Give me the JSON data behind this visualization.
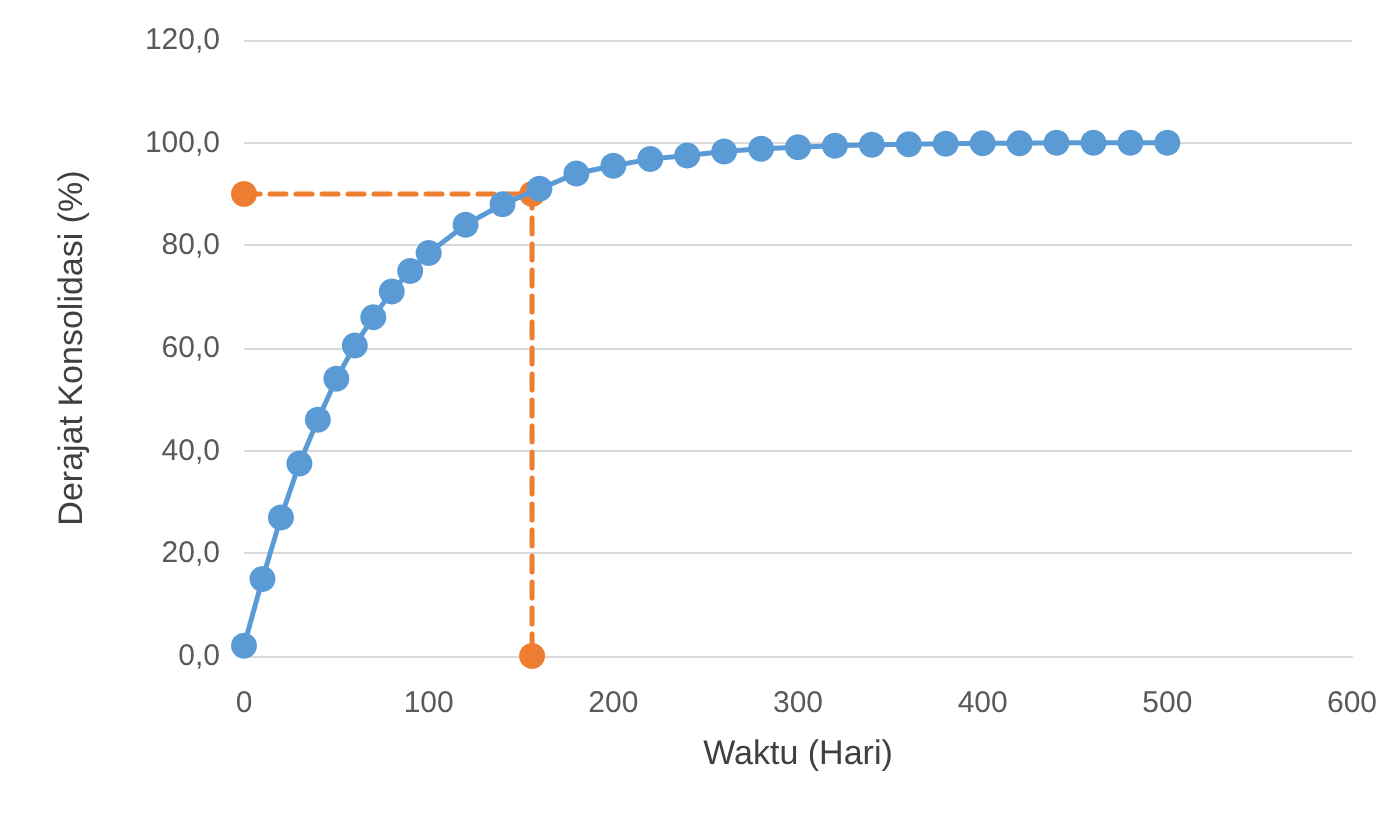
{
  "chart_data": {
    "type": "line",
    "xlabel": "Waktu (Hari)",
    "ylabel": "Derajat Konsolidasi (%)",
    "xlim": [
      0,
      600
    ],
    "xticks": [
      0,
      100,
      200,
      300,
      400,
      500,
      600
    ],
    "ylim": [
      0,
      120
    ],
    "yticks": [
      {
        "value": 0,
        "label": "0,0"
      },
      {
        "value": 20,
        "label": "20,0"
      },
      {
        "value": 40,
        "label": "40,0"
      },
      {
        "value": 60,
        "label": "60,0"
      },
      {
        "value": 80,
        "label": "80,0"
      },
      {
        "value": 100,
        "label": "100,0"
      },
      {
        "value": 120,
        "label": "120,0"
      }
    ],
    "grid": "y",
    "marker": "circle",
    "series": [
      {
        "color": "#5b9bd5",
        "line_style": "solid",
        "x": [
          0,
          10,
          20,
          30,
          40,
          50,
          60,
          70,
          80,
          90,
          100,
          120,
          140,
          160,
          180,
          200,
          220,
          240,
          260,
          280,
          300,
          320,
          340,
          360,
          380,
          400,
          420,
          440,
          460,
          480,
          500
        ],
        "values": [
          2,
          15,
          27,
          37.5,
          46,
          54,
          60.5,
          66,
          71,
          75,
          78.5,
          84,
          88,
          91,
          94,
          95.5,
          96.8,
          97.5,
          98.3,
          98.8,
          99.1,
          99.4,
          99.6,
          99.7,
          99.8,
          99.9,
          99.9,
          100,
          100,
          100,
          100
        ]
      },
      {
        "color": "#ed7d31",
        "line_style": "dashed",
        "x": [
          0,
          156,
          156
        ],
        "values": [
          90,
          90,
          0
        ]
      }
    ]
  }
}
